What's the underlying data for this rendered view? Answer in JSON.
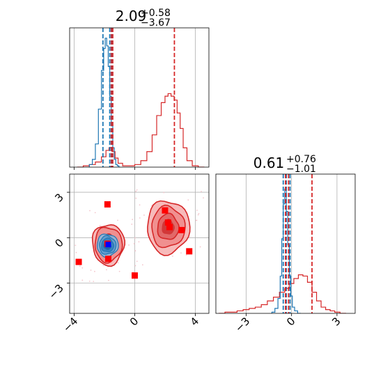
{
  "chart_data": {
    "type": "corner",
    "grid": true,
    "colors": {
      "blue": "#1f77b4",
      "red": "#d62728",
      "marker_red": "#ff0000",
      "marker_blue": "#0000ff"
    },
    "params": [
      {
        "title": {
          "median": "2.09",
          "plus": "+0.58",
          "minus": "−3.67"
        },
        "range": [
          -4.3,
          4.9
        ],
        "ticks": [
          -4,
          0,
          4
        ],
        "tick_labels": [
          "−4",
          "0",
          "4"
        ]
      },
      {
        "title": {
          "median": "0.61",
          "plus": "+0.76",
          "minus": "−1.01"
        },
        "range": [
          -5.0,
          4.2
        ],
        "ticks": [
          -3,
          0,
          3
        ],
        "tick_labels": [
          "−3",
          "0",
          "3"
        ]
      }
    ],
    "hist_blue_p1": {
      "x": [
        -2.9,
        -2.7,
        -2.5,
        -2.3,
        -2.1,
        -2.0,
        -1.9,
        -1.8,
        -1.7,
        -1.6,
        -1.5,
        -1.4,
        -1.3,
        -1.2,
        -1.1,
        -1.0
      ],
      "y": [
        0.02,
        0.06,
        0.18,
        0.45,
        0.75,
        0.92,
        1.0,
        0.94,
        0.78,
        0.55,
        0.32,
        0.15,
        0.06,
        0.02,
        0.01,
        0.0
      ]
    },
    "hist_red_p1": {
      "x": [
        -3.6,
        -3.2,
        -2.8,
        -2.4,
        -2.0,
        -1.8,
        -1.6,
        -1.4,
        -1.2,
        -1.0,
        -0.6,
        -0.2,
        0.2,
        0.6,
        1.0,
        1.3,
        1.6,
        1.9,
        2.1,
        2.3,
        2.5,
        2.7,
        2.9,
        3.1,
        3.3,
        3.6,
        4.0,
        4.4
      ],
      "y": [
        0.0,
        0.01,
        0.02,
        0.04,
        0.08,
        0.13,
        0.15,
        0.12,
        0.07,
        0.03,
        0.01,
        0.01,
        0.02,
        0.05,
        0.12,
        0.25,
        0.4,
        0.5,
        0.55,
        0.57,
        0.55,
        0.52,
        0.42,
        0.3,
        0.15,
        0.05,
        0.01,
        0.0
      ]
    },
    "hist_blue_p2": {
      "x": [
        -1.2,
        -1.0,
        -0.8,
        -0.7,
        -0.6,
        -0.5,
        -0.4,
        -0.3,
        -0.2,
        -0.1,
        0.0,
        0.1,
        0.3,
        0.5
      ],
      "y": [
        0.01,
        0.04,
        0.12,
        0.3,
        0.6,
        0.88,
        1.0,
        0.82,
        0.55,
        0.3,
        0.14,
        0.05,
        0.02,
        0.0
      ]
    },
    "hist_red_p2": {
      "x": [
        -4.6,
        -4.2,
        -3.8,
        -3.4,
        -3.0,
        -2.6,
        -2.2,
        -1.8,
        -1.4,
        -1.0,
        -0.6,
        -0.3,
        0.0,
        0.3,
        0.6,
        0.9,
        1.2,
        1.5,
        1.8,
        2.1,
        2.4,
        2.7,
        3.0,
        3.4
      ],
      "y": [
        0.0,
        0.01,
        0.01,
        0.02,
        0.03,
        0.04,
        0.05,
        0.07,
        0.1,
        0.13,
        0.17,
        0.2,
        0.24,
        0.28,
        0.31,
        0.3,
        0.25,
        0.17,
        0.1,
        0.05,
        0.03,
        0.02,
        0.01,
        0.0
      ]
    },
    "hist_ymax_p1": 1.08,
    "hist_ymax_p2": 1.12,
    "vlines_p1": {
      "blue": [
        -2.1,
        -1.65,
        -1.5
      ],
      "red": [
        -1.55,
        -1.45,
        2.62
      ]
    },
    "vlines_p2": {
      "blue": [
        -0.55,
        -0.35,
        -0.1
      ],
      "red": [
        -0.4,
        -0.2,
        1.35
      ]
    },
    "contours_blue": {
      "center": [
        -1.8,
        -0.5
      ],
      "levels": [
        [
          0.7,
          0.75
        ],
        [
          0.55,
          0.6
        ],
        [
          0.4,
          0.45
        ],
        [
          0.25,
          0.3
        ]
      ]
    },
    "contours_red": [
      {
        "center": [
          -1.75,
          -0.45
        ],
        "levels": [
          [
            1.05,
            1.35
          ],
          [
            0.9,
            1.15
          ]
        ]
      },
      {
        "center": [
          2.2,
          0.7
        ],
        "levels": [
          [
            1.4,
            1.75
          ],
          [
            1.1,
            1.35
          ],
          [
            0.7,
            0.85
          ]
        ]
      }
    ],
    "markers_red": [
      [
        -1.8,
        2.2
      ],
      [
        -3.7,
        -1.6
      ],
      [
        -1.75,
        -1.4
      ],
      [
        0.0,
        -2.5
      ],
      [
        2.0,
        1.8
      ],
      [
        2.2,
        1.0
      ],
      [
        2.3,
        0.7
      ],
      [
        3.1,
        0.5
      ],
      [
        3.6,
        -0.9
      ],
      [
        -1.8,
        -0.4
      ]
    ],
    "marker_blue": [
      -1.75,
      -0.45
    ]
  }
}
